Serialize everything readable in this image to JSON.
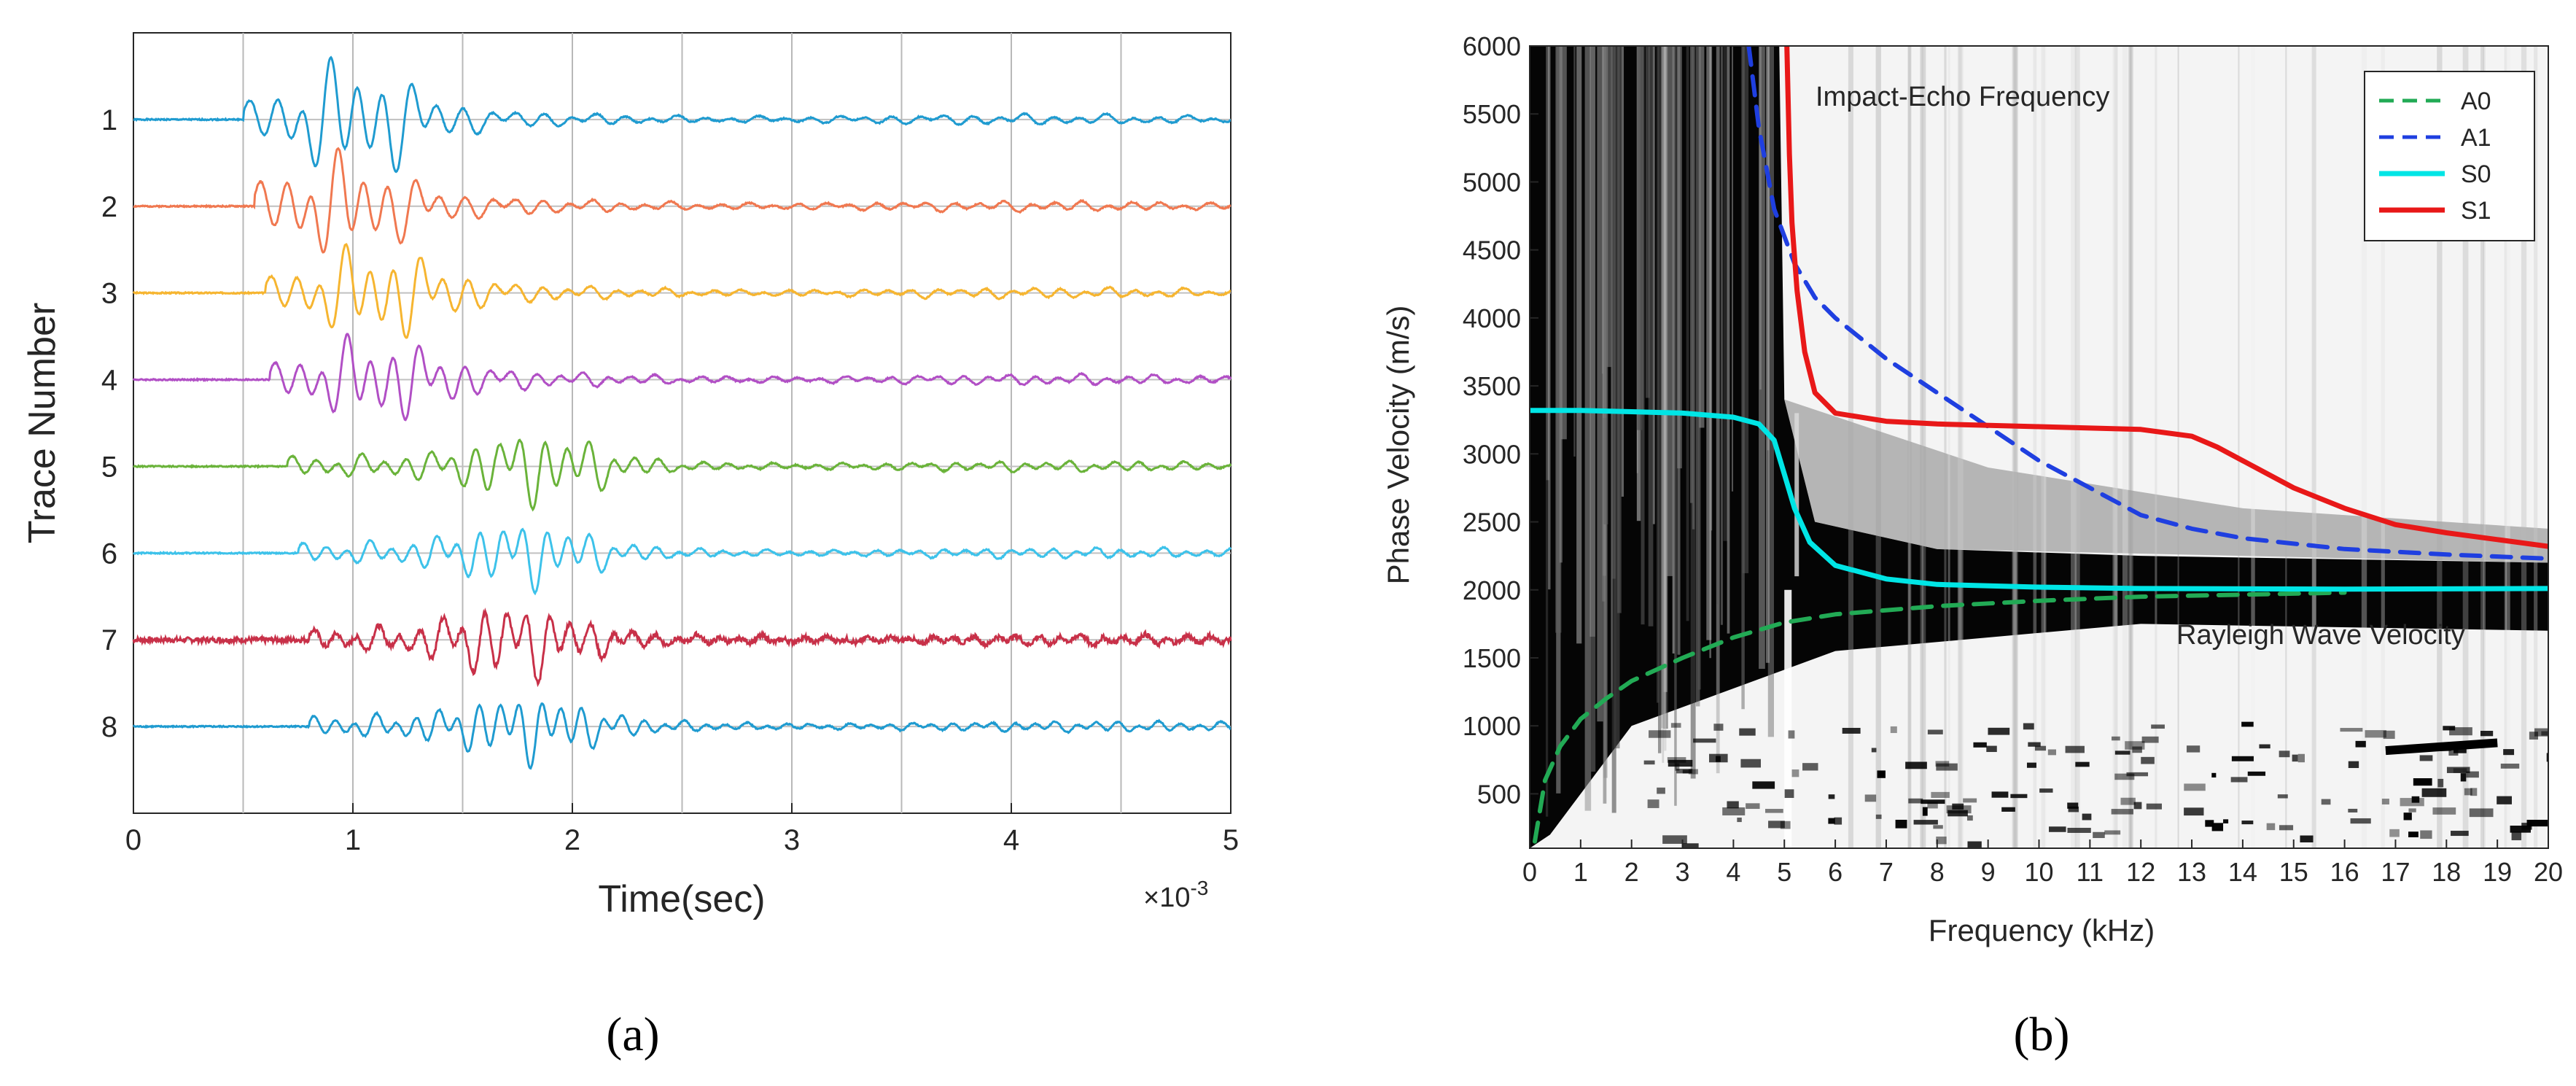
{
  "panel_a": {
    "caption": "(a)",
    "xlabel": "Time(sec)",
    "ylabel": "Trace Number",
    "exponent_base": "×10",
    "exponent_power": "-3"
  },
  "panel_b": {
    "caption": "(b)",
    "xlabel": "Frequency (kHz)",
    "ylabel": "Phase Velocity (m/s)",
    "annotation_top": "Impact-Echo Frequency",
    "annotation_bottom": "Rayleigh Wave Velocity"
  },
  "chart_data": [
    {
      "type": "line",
      "panel": "a",
      "xlabel": "Time(sec)",
      "ylabel": "Trace Number",
      "x_scale_label": "×10-3",
      "xlim": [
        0,
        5
      ],
      "ylim": [
        0,
        9
      ],
      "y_reversed": true,
      "grid": true,
      "x_ticks": [
        0,
        1,
        2,
        3,
        4,
        5
      ],
      "y_ticks": [
        1,
        2,
        3,
        4,
        5,
        6,
        7,
        8
      ],
      "series": [
        {
          "trace": 1,
          "onset": 0.5,
          "color": "#1f9bd0",
          "peak_time": 1.0,
          "peak_amplitude": 0.6
        },
        {
          "trace": 2,
          "onset": 0.55,
          "color": "#f07850",
          "peak_time": 0.95,
          "peak_amplitude": 0.5
        },
        {
          "trace": 3,
          "onset": 0.6,
          "color": "#f6b530",
          "peak_time": 1.1,
          "peak_amplitude": 0.45
        },
        {
          "trace": 4,
          "onset": 0.62,
          "color": "#b14fc5",
          "peak_time": 1.1,
          "peak_amplitude": 0.4
        },
        {
          "trace": 5,
          "onset": 0.7,
          "color": "#6ab33a",
          "peak_time": 1.85,
          "peak_amplitude": 0.35
        },
        {
          "trace": 6,
          "onset": 0.75,
          "color": "#3dc2ea",
          "peak_time": 1.8,
          "peak_amplitude": 0.3
        },
        {
          "trace": 7,
          "onset": 0.8,
          "color": "#c83048",
          "peak_time": 1.75,
          "peak_amplitude": 0.35
        },
        {
          "trace": 8,
          "onset": 0.8,
          "color": "#1f9bd0",
          "peak_time": 1.8,
          "peak_amplitude": 0.3
        }
      ]
    },
    {
      "type": "heatmap",
      "panel": "b",
      "xlabel": "Frequency (kHz)",
      "ylabel": "Phase Velocity (m/s)",
      "xlim": [
        0,
        20
      ],
      "ylim": [
        100,
        6000
      ],
      "x_ticks": [
        0,
        1,
        2,
        3,
        4,
        5,
        6,
        7,
        8,
        9,
        10,
        11,
        12,
        13,
        14,
        15,
        16,
        17,
        18,
        19,
        20
      ],
      "y_ticks": [
        500,
        1000,
        1500,
        2000,
        2500,
        3000,
        3500,
        4000,
        4500,
        5000,
        5500,
        6000
      ],
      "colormap": "grayscale (black = high)",
      "legend_position": "top-right",
      "series": [
        {
          "name": "A0",
          "color": "#22aa55",
          "style": "dashed",
          "x": [
            0.1,
            0.3,
            0.6,
            1,
            1.5,
            2,
            3,
            4,
            5,
            6,
            8,
            10,
            12,
            14,
            16
          ],
          "y": [
            150,
            600,
            850,
            1050,
            1200,
            1330,
            1500,
            1650,
            1760,
            1820,
            1880,
            1920,
            1950,
            1965,
            1980
          ]
        },
        {
          "name": "A1",
          "color": "#1f3fe0",
          "style": "dashed",
          "x": [
            4.3,
            4.5,
            4.8,
            5.2,
            5.6,
            6,
            7,
            8,
            9,
            10,
            11,
            12,
            13,
            14,
            16,
            18,
            20
          ],
          "y": [
            6000,
            5400,
            4800,
            4400,
            4150,
            4000,
            3700,
            3450,
            3200,
            2950,
            2750,
            2550,
            2450,
            2380,
            2300,
            2260,
            2230
          ]
        },
        {
          "name": "S0",
          "color": "#00e5e5",
          "style": "solid",
          "x": [
            0,
            1,
            2,
            3,
            4,
            4.5,
            4.8,
            5.0,
            5.2,
            5.5,
            6,
            7,
            8,
            10,
            12,
            16,
            20
          ],
          "y": [
            3320,
            3320,
            3310,
            3300,
            3270,
            3220,
            3100,
            2850,
            2600,
            2350,
            2180,
            2080,
            2040,
            2020,
            2010,
            2005,
            2010
          ]
        },
        {
          "name": "S1",
          "color": "#e81818",
          "style": "solid",
          "x": [
            5.05,
            5.1,
            5.15,
            5.25,
            5.4,
            5.6,
            6,
            7,
            8,
            10,
            12,
            13,
            13.5,
            14,
            15,
            16,
            17,
            18,
            19,
            20
          ],
          "y": [
            6000,
            5200,
            4700,
            4200,
            3750,
            3450,
            3300,
            3240,
            3220,
            3200,
            3180,
            3130,
            3050,
            2950,
            2750,
            2600,
            2480,
            2420,
            2370,
            2320
          ]
        }
      ]
    }
  ]
}
